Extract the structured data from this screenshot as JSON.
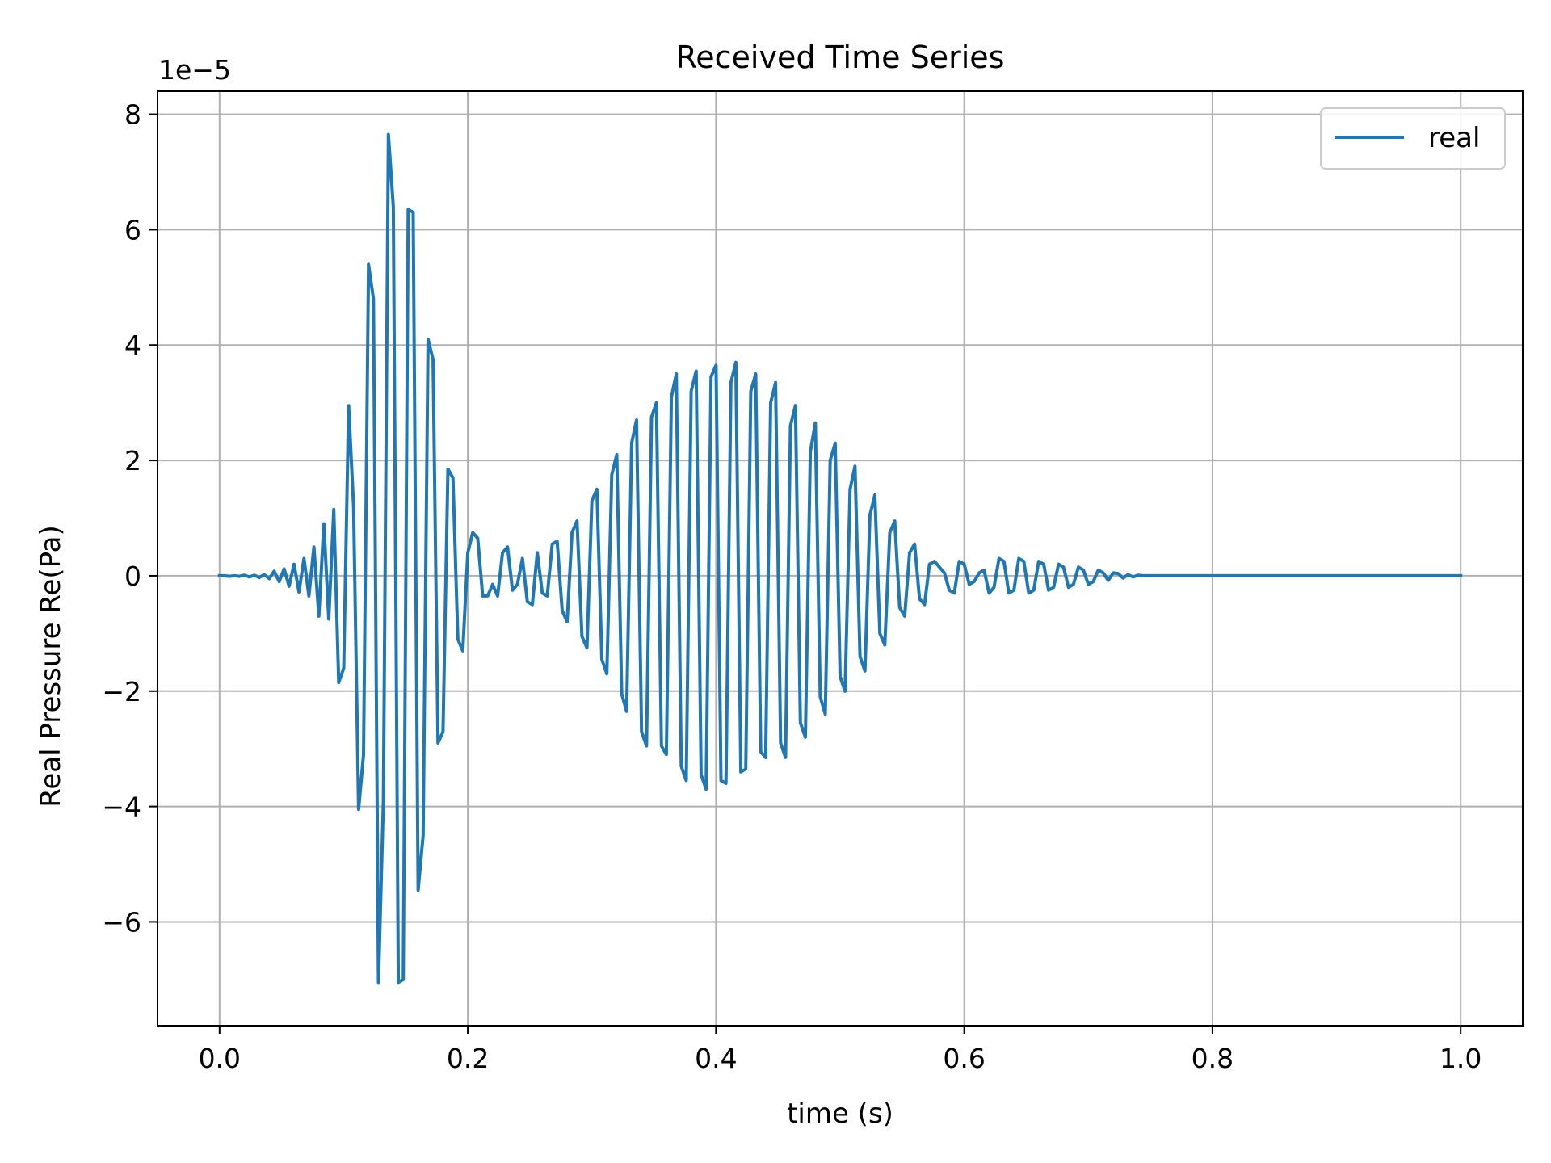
{
  "chart_data": {
    "type": "line",
    "title": "Received Time Series",
    "xlabel": "time (s)",
    "ylabel": "Real Pressure Re(Pa)",
    "offset_text": "1e−5",
    "xlim": [
      -0.05,
      1.05
    ],
    "ylim": [
      -7.8,
      8.4
    ],
    "x_ticks": [
      0.0,
      0.2,
      0.4,
      0.6,
      0.8,
      1.0
    ],
    "x_tick_labels": [
      "0.0",
      "0.2",
      "0.4",
      "0.6",
      "0.8",
      "1.0"
    ],
    "y_ticks": [
      -6,
      -4,
      -2,
      0,
      2,
      4,
      6,
      8
    ],
    "y_tick_labels": [
      "−6",
      "−4",
      "−2",
      "0",
      "2",
      "4",
      "6",
      "8"
    ],
    "grid": true,
    "legend_position": "top-right",
    "series_color": "#1f77b4",
    "series": [
      {
        "name": "real",
        "points": [
          [
            0.0,
            0.0
          ],
          [
            0.004,
            0.0
          ],
          [
            0.008,
            -0.01
          ],
          [
            0.012,
            0.0
          ],
          [
            0.016,
            -0.01
          ],
          [
            0.02,
            0.01
          ],
          [
            0.024,
            -0.02
          ],
          [
            0.028,
            0.01
          ],
          [
            0.032,
            -0.03
          ],
          [
            0.036,
            0.02
          ],
          [
            0.04,
            -0.05
          ],
          [
            0.044,
            0.08
          ],
          [
            0.048,
            -0.1
          ],
          [
            0.052,
            0.12
          ],
          [
            0.056,
            -0.18
          ],
          [
            0.06,
            0.2
          ],
          [
            0.064,
            -0.28
          ],
          [
            0.068,
            0.3
          ],
          [
            0.072,
            -0.35
          ],
          [
            0.076,
            0.5
          ],
          [
            0.08,
            -0.7
          ],
          [
            0.084,
            0.9
          ],
          [
            0.088,
            -0.75
          ],
          [
            0.092,
            1.15
          ],
          [
            0.096,
            -1.85
          ],
          [
            0.1,
            -1.6
          ],
          [
            0.104,
            2.95
          ],
          [
            0.108,
            1.2
          ],
          [
            0.112,
            -4.05
          ],
          [
            0.116,
            -3.1
          ],
          [
            0.12,
            5.4
          ],
          [
            0.124,
            4.8
          ],
          [
            0.128,
            -7.05
          ],
          [
            0.132,
            -3.9
          ],
          [
            0.136,
            7.65
          ],
          [
            0.14,
            6.4
          ],
          [
            0.144,
            -7.05
          ],
          [
            0.148,
            -7.0
          ],
          [
            0.152,
            6.35
          ],
          [
            0.156,
            6.3
          ],
          [
            0.16,
            -5.45
          ],
          [
            0.164,
            -4.5
          ],
          [
            0.168,
            4.1
          ],
          [
            0.172,
            3.75
          ],
          [
            0.176,
            -2.9
          ],
          [
            0.18,
            -2.7
          ],
          [
            0.184,
            1.85
          ],
          [
            0.188,
            1.7
          ],
          [
            0.192,
            -1.1
          ],
          [
            0.196,
            -1.3
          ],
          [
            0.2,
            0.4
          ],
          [
            0.204,
            0.75
          ],
          [
            0.208,
            0.65
          ],
          [
            0.212,
            -0.35
          ],
          [
            0.216,
            -0.35
          ],
          [
            0.22,
            -0.15
          ],
          [
            0.224,
            -0.35
          ],
          [
            0.228,
            0.4
          ],
          [
            0.232,
            0.5
          ],
          [
            0.236,
            -0.25
          ],
          [
            0.24,
            -0.15
          ],
          [
            0.244,
            0.3
          ],
          [
            0.248,
            -0.45
          ],
          [
            0.252,
            -0.5
          ],
          [
            0.256,
            0.4
          ],
          [
            0.26,
            -0.3
          ],
          [
            0.264,
            -0.35
          ],
          [
            0.268,
            0.55
          ],
          [
            0.272,
            0.6
          ],
          [
            0.276,
            -0.6
          ],
          [
            0.28,
            -0.8
          ],
          [
            0.284,
            0.75
          ],
          [
            0.288,
            0.95
          ],
          [
            0.292,
            -1.05
          ],
          [
            0.296,
            -1.25
          ],
          [
            0.3,
            1.3
          ],
          [
            0.304,
            1.5
          ],
          [
            0.308,
            -1.45
          ],
          [
            0.312,
            -1.7
          ],
          [
            0.316,
            1.75
          ],
          [
            0.32,
            2.1
          ],
          [
            0.324,
            -2.05
          ],
          [
            0.328,
            -2.35
          ],
          [
            0.332,
            2.3
          ],
          [
            0.336,
            2.7
          ],
          [
            0.34,
            -2.7
          ],
          [
            0.344,
            -2.95
          ],
          [
            0.348,
            2.75
          ],
          [
            0.352,
            3.0
          ],
          [
            0.356,
            -2.95
          ],
          [
            0.36,
            -3.1
          ],
          [
            0.364,
            3.1
          ],
          [
            0.368,
            3.5
          ],
          [
            0.372,
            -3.3
          ],
          [
            0.376,
            -3.55
          ],
          [
            0.38,
            3.2
          ],
          [
            0.384,
            3.55
          ],
          [
            0.388,
            -3.45
          ],
          [
            0.392,
            -3.7
          ],
          [
            0.396,
            3.45
          ],
          [
            0.4,
            3.65
          ],
          [
            0.404,
            -3.55
          ],
          [
            0.408,
            -3.6
          ],
          [
            0.412,
            3.35
          ],
          [
            0.416,
            3.7
          ],
          [
            0.42,
            -3.4
          ],
          [
            0.424,
            -3.35
          ],
          [
            0.428,
            3.2
          ],
          [
            0.432,
            3.5
          ],
          [
            0.436,
            -3.05
          ],
          [
            0.44,
            -3.15
          ],
          [
            0.444,
            3.0
          ],
          [
            0.448,
            3.35
          ],
          [
            0.452,
            -2.9
          ],
          [
            0.456,
            -3.15
          ],
          [
            0.46,
            2.6
          ],
          [
            0.464,
            2.95
          ],
          [
            0.468,
            -2.55
          ],
          [
            0.472,
            -2.8
          ],
          [
            0.476,
            2.15
          ],
          [
            0.48,
            2.65
          ],
          [
            0.484,
            -2.1
          ],
          [
            0.488,
            -2.4
          ],
          [
            0.492,
            2.0
          ],
          [
            0.496,
            2.3
          ],
          [
            0.5,
            -1.75
          ],
          [
            0.504,
            -2.0
          ],
          [
            0.508,
            1.5
          ],
          [
            0.512,
            1.9
          ],
          [
            0.516,
            -1.4
          ],
          [
            0.52,
            -1.65
          ],
          [
            0.524,
            1.05
          ],
          [
            0.528,
            1.4
          ],
          [
            0.532,
            -1.0
          ],
          [
            0.536,
            -1.2
          ],
          [
            0.54,
            0.75
          ],
          [
            0.544,
            0.95
          ],
          [
            0.548,
            -0.55
          ],
          [
            0.552,
            -0.7
          ],
          [
            0.556,
            0.4
          ],
          [
            0.56,
            0.55
          ],
          [
            0.564,
            -0.4
          ],
          [
            0.568,
            -0.5
          ],
          [
            0.572,
            0.2
          ],
          [
            0.576,
            0.25
          ],
          [
            0.58,
            0.15
          ],
          [
            0.584,
            0.05
          ],
          [
            0.588,
            -0.25
          ],
          [
            0.592,
            -0.3
          ],
          [
            0.596,
            0.25
          ],
          [
            0.6,
            0.2
          ],
          [
            0.604,
            -0.15
          ],
          [
            0.608,
            -0.1
          ],
          [
            0.612,
            0.05
          ],
          [
            0.616,
            0.1
          ],
          [
            0.62,
            -0.3
          ],
          [
            0.624,
            -0.2
          ],
          [
            0.628,
            0.3
          ],
          [
            0.632,
            0.25
          ],
          [
            0.636,
            -0.3
          ],
          [
            0.64,
            -0.25
          ],
          [
            0.644,
            0.3
          ],
          [
            0.648,
            0.25
          ],
          [
            0.652,
            -0.3
          ],
          [
            0.656,
            -0.25
          ],
          [
            0.66,
            0.25
          ],
          [
            0.664,
            0.2
          ],
          [
            0.668,
            -0.25
          ],
          [
            0.672,
            -0.2
          ],
          [
            0.676,
            0.2
          ],
          [
            0.68,
            0.15
          ],
          [
            0.684,
            -0.2
          ],
          [
            0.688,
            -0.15
          ],
          [
            0.692,
            0.15
          ],
          [
            0.696,
            0.1
          ],
          [
            0.7,
            -0.15
          ],
          [
            0.704,
            -0.1
          ],
          [
            0.708,
            0.1
          ],
          [
            0.712,
            0.05
          ],
          [
            0.716,
            -0.08
          ],
          [
            0.72,
            0.05
          ],
          [
            0.724,
            0.04
          ],
          [
            0.728,
            -0.04
          ],
          [
            0.732,
            0.02
          ],
          [
            0.736,
            -0.02
          ],
          [
            0.74,
            0.01
          ],
          [
            0.744,
            0.0
          ],
          [
            0.748,
            0.0
          ],
          [
            0.752,
            0.0
          ],
          [
            0.756,
            0.0
          ],
          [
            0.76,
            0.0
          ],
          [
            0.764,
            0.0
          ],
          [
            0.768,
            0.0
          ],
          [
            0.772,
            0.0
          ],
          [
            0.776,
            0.0
          ]
        ]
      }
    ]
  }
}
